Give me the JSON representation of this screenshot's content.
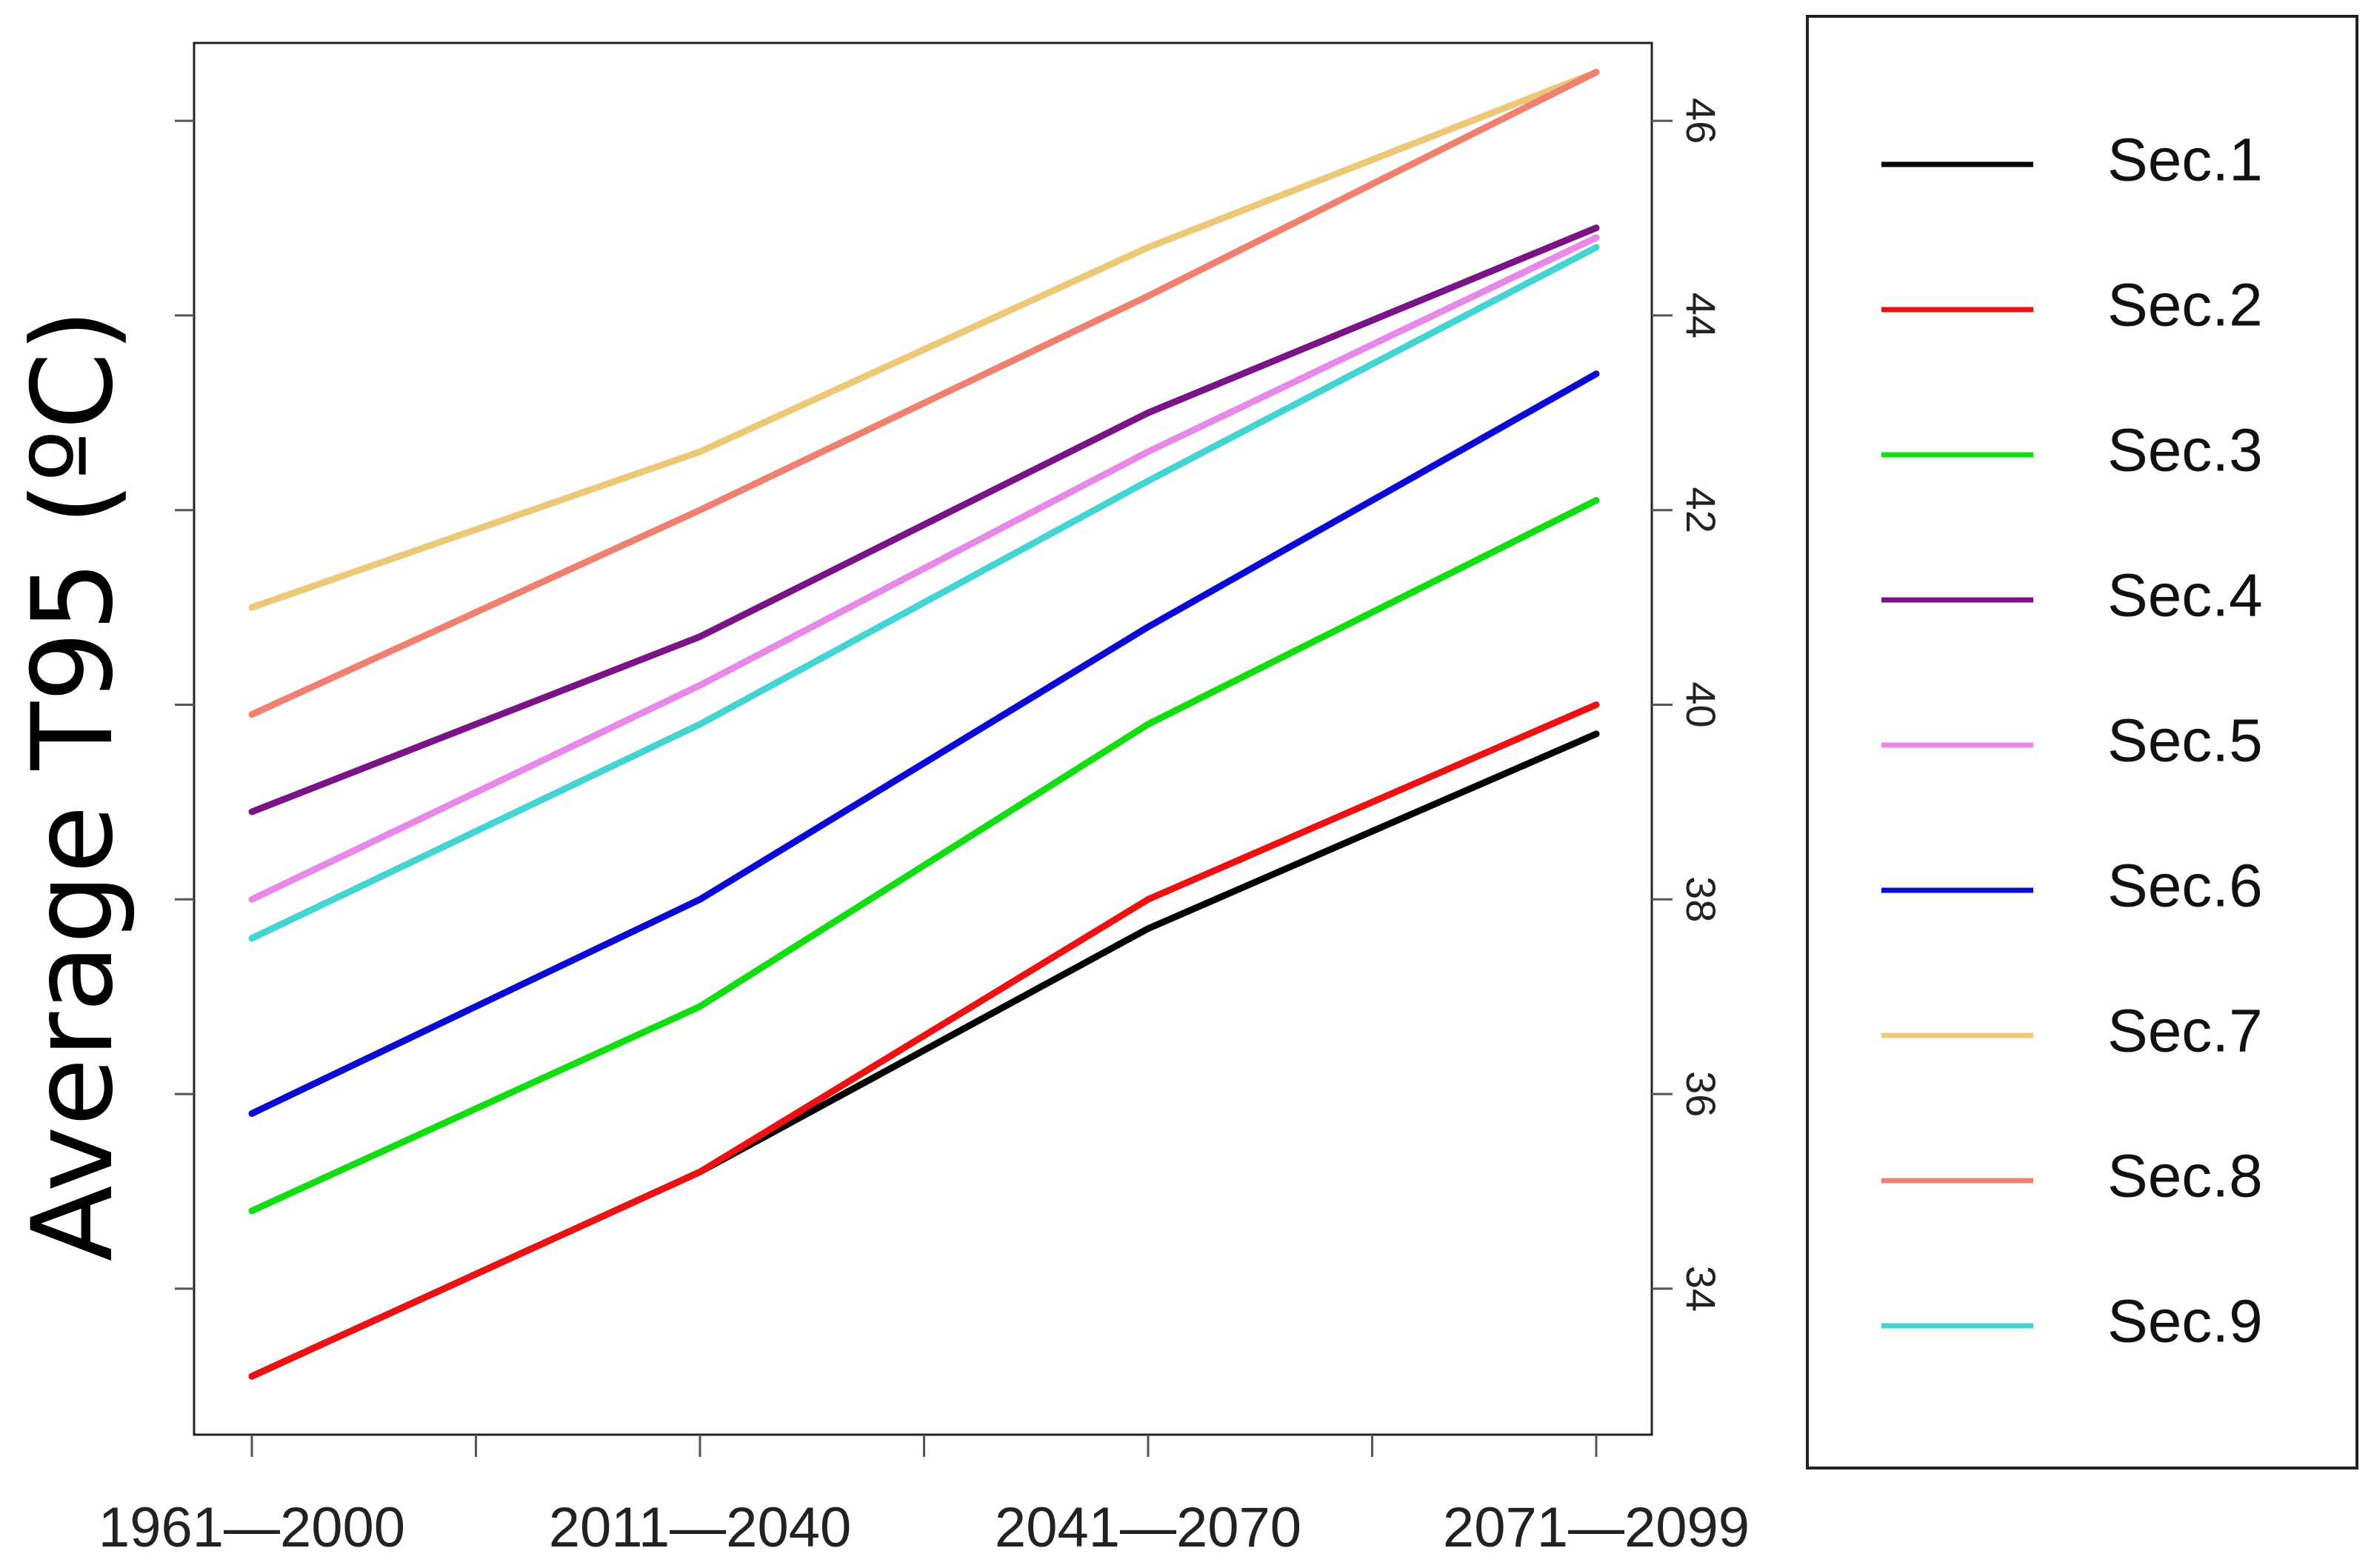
{
  "chart_data": {
    "type": "line",
    "title": "",
    "xlabel": "",
    "ylabel": "Average T95 (ºC)",
    "categories": [
      "1961—2000",
      "2011—2040",
      "2041—2070",
      "2071—2099"
    ],
    "ylim": [
      32.5,
      46.8
    ],
    "yticks": [
      34,
      36,
      38,
      40,
      42,
      44,
      46
    ],
    "yaxis_side": "right",
    "legend_position": "right-outside",
    "series": [
      {
        "name": "Sec.1",
        "color": "#000000",
        "values": [
          33.1,
          35.2,
          37.7,
          39.7
        ]
      },
      {
        "name": "Sec.2",
        "color": "#ee1111",
        "values": [
          33.1,
          35.2,
          38.0,
          40.0
        ]
      },
      {
        "name": "Sec.3",
        "color": "#11dd11",
        "values": [
          34.8,
          36.9,
          39.8,
          42.1
        ]
      },
      {
        "name": "Sec.4",
        "color": "#7a1385",
        "values": [
          38.9,
          40.7,
          43.0,
          44.9
        ]
      },
      {
        "name": "Sec.5",
        "color": "#e888e8",
        "values": [
          38.0,
          40.2,
          42.6,
          44.8
        ]
      },
      {
        "name": "Sec.6",
        "color": "#0a0ad2",
        "values": [
          35.8,
          38.0,
          40.8,
          43.4
        ]
      },
      {
        "name": "Sec.7",
        "color": "#ecc877",
        "values": [
          41.0,
          42.6,
          44.7,
          46.5
        ]
      },
      {
        "name": "Sec.8",
        "color": "#f08070",
        "values": [
          39.9,
          42.0,
          44.2,
          46.5
        ]
      },
      {
        "name": "Sec.9",
        "color": "#44d4d4",
        "values": [
          37.6,
          39.8,
          42.3,
          44.7
        ]
      }
    ]
  }
}
